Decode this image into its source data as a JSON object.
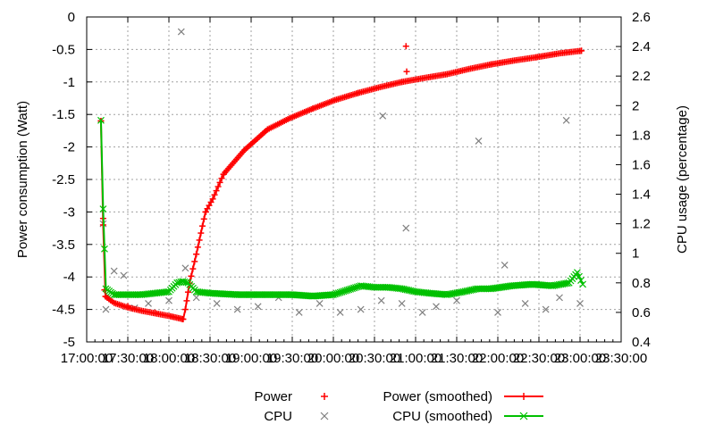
{
  "chart_data": {
    "type": "line",
    "title": "",
    "xlabel": "",
    "ylabel": "Power consumption (Watt)",
    "y2label": "CPU usage (percentage)",
    "x_ticks": [
      "17:00:00",
      "17:30:00",
      "18:00:00",
      "18:30:00",
      "19:00:00",
      "19:30:00",
      "20:00:00",
      "20:30:00",
      "21:00:00",
      "21:30:00",
      "22:00:00",
      "22:30:00",
      "23:00:00",
      "23:30:00"
    ],
    "xlim_minutes_since_1700": [
      0,
      390
    ],
    "ylim": [
      -5,
      0
    ],
    "y_ticks": [
      "0",
      "-0.5",
      "-1",
      "-1.5",
      "-2",
      "-2.5",
      "-3",
      "-3.5",
      "-4",
      "-4.5",
      "-5"
    ],
    "y2lim": [
      0.4,
      2.6
    ],
    "y2_ticks": [
      "2.6",
      "2.4",
      "2.2",
      "2",
      "1.8",
      "1.6",
      "1.4",
      "1.2",
      "1",
      "0.8",
      "0.6",
      "0.4"
    ],
    "grid": true,
    "legend_placement": "bottom",
    "series": [
      {
        "name": "Power",
        "axis": "y",
        "style": "points",
        "marker": "+",
        "color": "#ff0000",
        "points": [
          [
            10.4,
            -1.6
          ],
          [
            12,
            -3.1
          ],
          [
            13,
            -4.2
          ],
          [
            14,
            -4.3
          ],
          [
            30,
            -4.45
          ],
          [
            50,
            -4.55
          ],
          [
            70,
            -4.65
          ],
          [
            75,
            -4.1
          ],
          [
            80,
            -3.65
          ],
          [
            87,
            -3.0
          ],
          [
            100,
            -2.42
          ],
          [
            132,
            -1.73
          ],
          [
            165,
            -1.41
          ],
          [
            198,
            -1.17
          ],
          [
            230,
            -1.0
          ],
          [
            233,
            -0.45
          ],
          [
            233.5,
            -0.84
          ],
          [
            263,
            -0.88
          ],
          [
            295,
            -0.73
          ],
          [
            328,
            -0.62
          ],
          [
            361,
            -0.52
          ]
        ]
      },
      {
        "name": "CPU",
        "axis": "y2",
        "style": "points",
        "marker": "x",
        "color": "#808080",
        "points": [
          [
            12,
            1.2
          ],
          [
            14,
            0.62
          ],
          [
            20,
            0.88
          ],
          [
            27,
            0.85
          ],
          [
            35,
            0.63
          ],
          [
            45,
            0.66
          ],
          [
            60,
            0.68
          ],
          [
            69,
            2.5
          ],
          [
            72,
            0.9
          ],
          [
            80,
            0.7
          ],
          [
            95,
            0.66
          ],
          [
            110,
            0.62
          ],
          [
            125,
            0.64
          ],
          [
            140,
            0.7
          ],
          [
            155,
            0.6
          ],
          [
            170,
            0.66
          ],
          [
            185,
            0.6
          ],
          [
            200,
            0.62
          ],
          [
            215,
            0.68
          ],
          [
            216,
            1.93
          ],
          [
            230,
            0.66
          ],
          [
            233,
            1.17
          ],
          [
            245,
            0.6
          ],
          [
            255,
            0.64
          ],
          [
            270,
            0.68
          ],
          [
            286,
            1.76
          ],
          [
            300,
            0.6
          ],
          [
            305,
            0.92
          ],
          [
            320,
            0.66
          ],
          [
            335,
            0.62
          ],
          [
            345,
            0.7
          ],
          [
            350,
            1.9
          ],
          [
            360,
            0.66
          ]
        ]
      },
      {
        "name": "Power (smoothed)",
        "axis": "y",
        "style": "linespoints",
        "marker": "+",
        "color": "#ff0000",
        "points": [
          [
            10.4,
            -1.6
          ],
          [
            12,
            -3.2
          ],
          [
            13.7,
            -4.3
          ],
          [
            20,
            -4.4
          ],
          [
            30,
            -4.47
          ],
          [
            40,
            -4.52
          ],
          [
            50,
            -4.56
          ],
          [
            60,
            -4.6
          ],
          [
            70.4,
            -4.65
          ],
          [
            72,
            -4.5
          ],
          [
            75,
            -4.1
          ],
          [
            80,
            -3.65
          ],
          [
            86.7,
            -3.0
          ],
          [
            92,
            -2.8
          ],
          [
            99.8,
            -2.42
          ],
          [
            115,
            -2.05
          ],
          [
            132,
            -1.73
          ],
          [
            148,
            -1.56
          ],
          [
            165,
            -1.41
          ],
          [
            181,
            -1.28
          ],
          [
            198,
            -1.17
          ],
          [
            214,
            -1.08
          ],
          [
            230,
            -1.0
          ],
          [
            246,
            -0.94
          ],
          [
            263,
            -0.88
          ],
          [
            279,
            -0.8
          ],
          [
            295,
            -0.73
          ],
          [
            312,
            -0.67
          ],
          [
            328,
            -0.62
          ],
          [
            345,
            -0.56
          ],
          [
            361,
            -0.52
          ]
        ]
      },
      {
        "name": "CPU (smoothed)",
        "axis": "y2",
        "style": "linespoints",
        "marker": "x",
        "color": "#00c000",
        "points": [
          [
            10.4,
            1.9
          ],
          [
            12,
            1.3
          ],
          [
            14,
            0.76
          ],
          [
            20,
            0.72
          ],
          [
            30,
            0.72
          ],
          [
            40,
            0.72
          ],
          [
            50,
            0.73
          ],
          [
            60,
            0.74
          ],
          [
            66,
            0.8
          ],
          [
            70,
            0.81
          ],
          [
            74,
            0.8
          ],
          [
            80,
            0.74
          ],
          [
            90,
            0.73
          ],
          [
            110,
            0.72
          ],
          [
            130,
            0.72
          ],
          [
            150,
            0.72
          ],
          [
            165,
            0.71
          ],
          [
            180,
            0.72
          ],
          [
            190,
            0.75
          ],
          [
            200,
            0.78
          ],
          [
            210,
            0.77
          ],
          [
            220,
            0.77
          ],
          [
            230,
            0.76
          ],
          [
            240,
            0.74
          ],
          [
            250,
            0.73
          ],
          [
            263,
            0.72
          ],
          [
            275,
            0.74
          ],
          [
            285,
            0.76
          ],
          [
            295,
            0.76
          ],
          [
            310,
            0.78
          ],
          [
            325,
            0.79
          ],
          [
            340,
            0.78
          ],
          [
            352,
            0.8
          ],
          [
            358,
            0.87
          ],
          [
            362,
            0.79
          ]
        ]
      }
    ],
    "legend": [
      {
        "label": "Power",
        "marker": "+",
        "color": "#ff0000"
      },
      {
        "label": "CPU",
        "marker": "x",
        "color": "#808080"
      },
      {
        "label": "Power (smoothed)",
        "marker": "+",
        "color": "#ff0000"
      },
      {
        "label": "CPU (smoothed)",
        "marker": "x",
        "color": "#00c000"
      }
    ]
  }
}
